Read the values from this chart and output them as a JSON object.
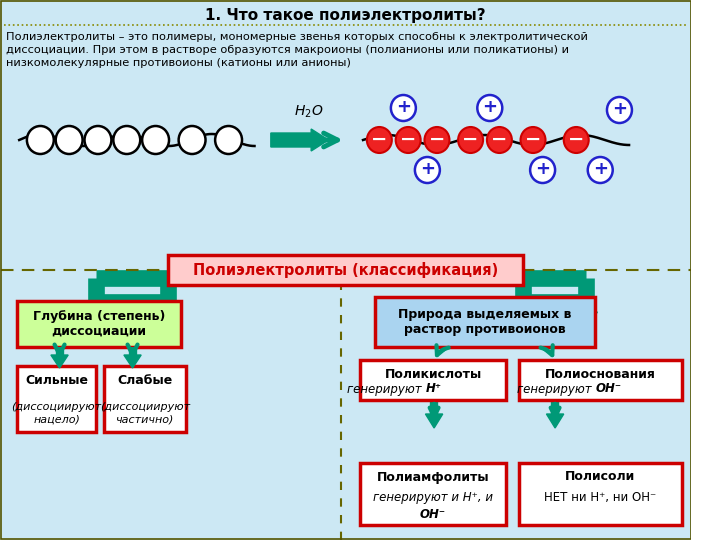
{
  "title": "1. Что такое полиэлектролиты?",
  "bg_top": "#cce8f4",
  "bg_bottom": "#cce8f4",
  "bg_bottom2": "#c8eec8",
  "border_outer": "#006600",
  "description": "Полиэлектролиты – это полимеры, мономерные звенья которых способны к электролитической\nдиссоциации. При этом в растворе образуются макроионы (полианионы или поликатионы) и\nнизкомолекулярные противоионы (катионы или анионы)",
  "arrow_color": "#00aa66",
  "teal_arrow": "#009980",
  "class_box": {
    "text": "Полиэлектролиты (классификация)",
    "fill": "#ffcccc",
    "border": "#cc0000",
    "text_color": "#cc0000"
  },
  "left_header": {
    "text": "Глубина (степень)\nдиссоциации",
    "fill": "#ccff99",
    "border": "#cc0000"
  },
  "right_header": {
    "text": "Природа выделяемых в\nраствор противоионов",
    "fill": "#aad4f0",
    "border": "#cc0000"
  },
  "silnye": {
    "line1": "Сильные",
    "line2": "(диссоциируют",
    "line3": "нацело)",
    "fill": "white",
    "border": "#cc0000"
  },
  "slabye": {
    "line1": "Слабые",
    "line2": "(диссоциируют",
    "line3": "частично)",
    "fill": "white",
    "border": "#cc0000"
  },
  "polykisloty": {
    "line1": "Поликислоты",
    "line2_norm": "генерируют ",
    "line2_bold": "H⁺",
    "fill": "white",
    "border": "#cc0000"
  },
  "polyamfolity": {
    "line1": "Полиамфолиты",
    "line2_norm": "генерируют и ",
    "line2_bold": "H⁺",
    "line2_end": ", и",
    "line3_bold": "ОН⁻",
    "fill": "white",
    "border": "#cc0000"
  },
  "polyosnovaniya": {
    "line1": "Полиоснования",
    "line2_norm": "генерируют ",
    "line2_bold": "ОН⁻",
    "fill": "white",
    "border": "#cc0000"
  },
  "polysoli": {
    "line1": "Полисоли",
    "line2_norm": "НЕТ ни ",
    "line2_bold": "H⁺",
    "line2_end": ", ни ",
    "line2_bold2": "ОН⁻",
    "fill": "white",
    "border": "#cc0000"
  }
}
